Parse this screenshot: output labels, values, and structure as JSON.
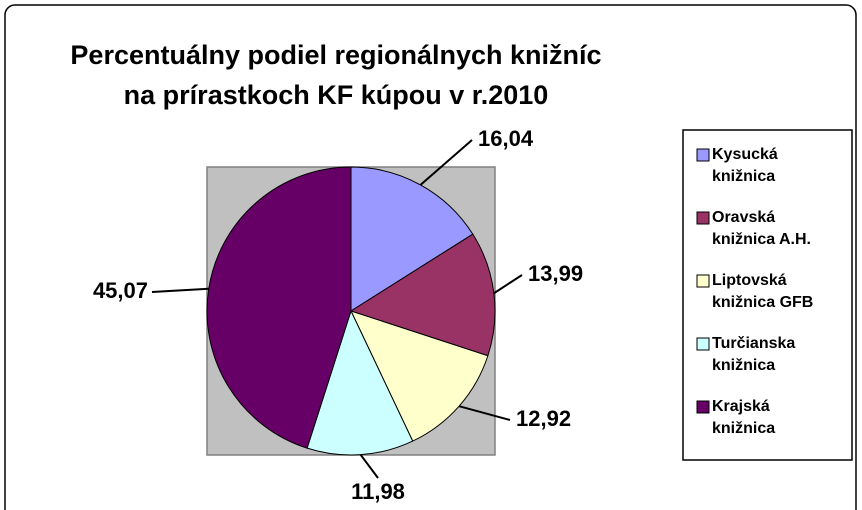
{
  "chart_data": {
    "type": "pie",
    "title": [
      "Percentuálny podiel regionálnych knižníc",
      "na prírastkoch KF kúpou v r.2010"
    ],
    "categories": [
      "Kysucká knižnica",
      "Oravská knižnica A.H.",
      "Liptovská knižnica GFB",
      "Turčianska knižnica",
      "Krajská knižnica"
    ],
    "values": [
      16.04,
      13.99,
      12.92,
      11.98,
      45.07
    ],
    "value_labels": [
      "16,04",
      "13,99",
      "12,92",
      "11,98",
      "45,07"
    ],
    "colors": [
      "#9999ff",
      "#993366",
      "#ffffcc",
      "#ccffff",
      "#660066"
    ],
    "legend": "right"
  }
}
